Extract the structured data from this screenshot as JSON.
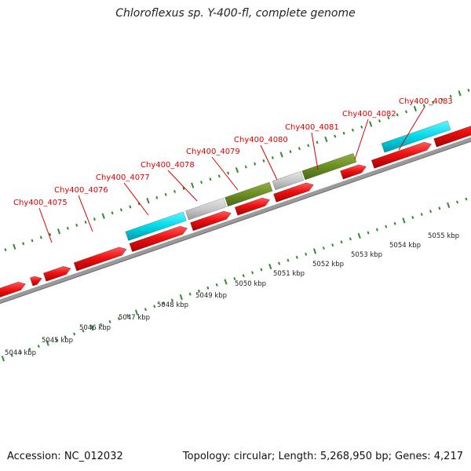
{
  "title": "Chloroflexus sp. Y-400-fl, complete genome",
  "footer": {
    "accession": "Accession: NC_012032",
    "topology": "Topology: circular; Length: 5,268,950 bp; Genes: 4,217"
  },
  "colors": {
    "gene_label": "#dd0000",
    "cds_red": "#ee1111",
    "feature_cyan": "#00d8e8",
    "feature_gray": "#c8c8c8",
    "feature_olive": "#6b8e23",
    "tick_green": "#2e8b2e",
    "backbone": "#888888"
  },
  "scale_labels": [
    "5044 kbp",
    "5045 kbp",
    "5046 kbp",
    "5047 kbp",
    "5048 kbp",
    "5049 kbp",
    "5050 kbp",
    "5051 kbp",
    "5052 kbp",
    "5053 kbp",
    "5054 kbp",
    "5055 kbp"
  ],
  "gene_labels": [
    "Chy400_4075",
    "Chy400_4076",
    "Chy400_4077",
    "Chy400_4078",
    "Chy400_4079",
    "Chy400_4080",
    "Chy400_4081",
    "Chy400_4082",
    "Chy400_4083"
  ]
}
